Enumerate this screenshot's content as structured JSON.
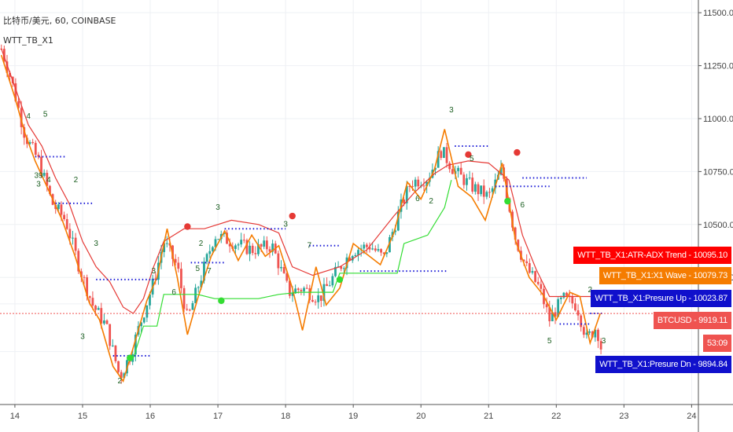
{
  "header": {
    "symbol_line": "比特币/美元, 60, COINBASE",
    "indicator_name": "WTT_TB_X1"
  },
  "chart_data": {
    "type": "candlestick",
    "ylim": [
      9650,
      11560
    ],
    "y_ticks": [
      {
        "value": 11500,
        "label": "11500.00"
      },
      {
        "value": 11250,
        "label": "11250.00"
      },
      {
        "value": 11000,
        "label": "11000.00"
      },
      {
        "value": 10750,
        "label": "10750.00"
      },
      {
        "value": 10500,
        "label": "10500.00"
      },
      {
        "value": 10250,
        "label": "10250.00"
      }
    ],
    "xlim": [
      13.78,
      24.1
    ],
    "x_ticks": [
      {
        "value": 14,
        "label": "14"
      },
      {
        "value": 15,
        "label": "15"
      },
      {
        "value": 16,
        "label": "16"
      },
      {
        "value": 17,
        "label": "17"
      },
      {
        "value": 18,
        "label": "18"
      },
      {
        "value": 19,
        "label": "19"
      },
      {
        "value": 20,
        "label": "20"
      },
      {
        "value": 21,
        "label": "21"
      },
      {
        "value": 22,
        "label": "22"
      },
      {
        "value": 23,
        "label": "23"
      },
      {
        "value": 24,
        "label": "24"
      }
    ],
    "price_path": [
      [
        13.78,
        11350
      ],
      [
        13.95,
        11180
      ],
      [
        14.15,
        10920
      ],
      [
        14.35,
        10800
      ],
      [
        14.55,
        10600
      ],
      [
        14.75,
        10520
      ],
      [
        14.95,
        10300
      ],
      [
        15.15,
        10120
      ],
      [
        15.35,
        10020
      ],
      [
        15.55,
        9780
      ],
      [
        15.7,
        9880
      ],
      [
        15.9,
        10080
      ],
      [
        16.05,
        10230
      ],
      [
        16.2,
        10420
      ],
      [
        16.4,
        10300
      ],
      [
        16.55,
        10050
      ],
      [
        16.75,
        10250
      ],
      [
        16.95,
        10450
      ],
      [
        17.2,
        10420
      ],
      [
        17.5,
        10380
      ],
      [
        17.8,
        10400
      ],
      [
        18.05,
        10180
      ],
      [
        18.25,
        10200
      ],
      [
        18.5,
        10150
      ],
      [
        18.8,
        10300
      ],
      [
        19.0,
        10380
      ],
      [
        19.25,
        10400
      ],
      [
        19.45,
        10340
      ],
      [
        19.7,
        10580
      ],
      [
        19.85,
        10700
      ],
      [
        20.1,
        10720
      ],
      [
        20.3,
        10850
      ],
      [
        20.5,
        10750
      ],
      [
        20.75,
        10680
      ],
      [
        21.0,
        10630
      ],
      [
        21.2,
        10760
      ],
      [
        21.4,
        10430
      ],
      [
        21.55,
        10300
      ],
      [
        21.75,
        10200
      ],
      [
        21.9,
        10050
      ],
      [
        22.1,
        10150
      ],
      [
        22.3,
        10120
      ],
      [
        22.45,
        9960
      ],
      [
        22.6,
        10020
      ],
      [
        22.65,
        9920
      ]
    ],
    "series": [
      {
        "name": "WTT_TB_X1:ATR-ADX Trend",
        "color": "#e53935",
        "points": [
          [
            13.8,
            11330
          ],
          [
            14.0,
            11150
          ],
          [
            14.2,
            10970
          ],
          [
            14.4,
            10870
          ],
          [
            14.6,
            10720
          ],
          [
            14.8,
            10600
          ],
          [
            15.0,
            10420
          ],
          [
            15.2,
            10300
          ],
          [
            15.4,
            10230
          ],
          [
            15.6,
            10110
          ],
          [
            15.75,
            10080
          ],
          [
            15.9,
            10150
          ],
          [
            16.05,
            10300
          ],
          [
            16.2,
            10420
          ],
          [
            16.5,
            10480
          ],
          [
            16.8,
            10480
          ],
          [
            17.2,
            10520
          ],
          [
            17.6,
            10500
          ],
          [
            17.9,
            10460
          ],
          [
            18.1,
            10300
          ],
          [
            18.4,
            10260
          ],
          [
            18.8,
            10300
          ],
          [
            19.2,
            10380
          ],
          [
            19.6,
            10540
          ],
          [
            19.9,
            10650
          ],
          [
            20.2,
            10740
          ],
          [
            20.4,
            10780
          ],
          [
            20.7,
            10800
          ],
          [
            21.0,
            10790
          ],
          [
            21.3,
            10710
          ],
          [
            21.5,
            10450
          ],
          [
            21.7,
            10290
          ],
          [
            21.9,
            10160
          ],
          [
            22.2,
            10160
          ],
          [
            22.5,
            10160
          ],
          [
            22.7,
            10150
          ]
        ]
      },
      {
        "name": "WTT_TB_X1:X1 Wave",
        "color": "#f57c00",
        "points": [
          [
            13.8,
            11300
          ],
          [
            14.0,
            11100
          ],
          [
            14.15,
            10930
          ],
          [
            14.3,
            10800
          ],
          [
            14.5,
            10660
          ],
          [
            14.7,
            10520
          ],
          [
            14.9,
            10340
          ],
          [
            15.1,
            10130
          ],
          [
            15.25,
            10050
          ],
          [
            15.45,
            9830
          ],
          [
            15.6,
            9760
          ],
          [
            15.75,
            9920
          ],
          [
            15.95,
            10140
          ],
          [
            16.1,
            10250
          ],
          [
            16.25,
            10480
          ],
          [
            16.4,
            10250
          ],
          [
            16.55,
            9980
          ],
          [
            16.7,
            10150
          ],
          [
            16.9,
            10350
          ],
          [
            17.1,
            10470
          ],
          [
            17.3,
            10330
          ],
          [
            17.5,
            10450
          ],
          [
            17.7,
            10350
          ],
          [
            17.9,
            10400
          ],
          [
            18.1,
            10200
          ],
          [
            18.25,
            10000
          ],
          [
            18.45,
            10300
          ],
          [
            18.6,
            10120
          ],
          [
            18.8,
            10200
          ],
          [
            19.0,
            10410
          ],
          [
            19.2,
            10360
          ],
          [
            19.4,
            10310
          ],
          [
            19.6,
            10460
          ],
          [
            19.8,
            10700
          ],
          [
            20.0,
            10620
          ],
          [
            20.2,
            10760
          ],
          [
            20.35,
            10950
          ],
          [
            20.55,
            10680
          ],
          [
            20.75,
            10630
          ],
          [
            20.95,
            10520
          ],
          [
            21.2,
            10790
          ],
          [
            21.4,
            10420
          ],
          [
            21.6,
            10250
          ],
          [
            21.8,
            10170
          ],
          [
            22.0,
            10050
          ],
          [
            22.2,
            10180
          ],
          [
            22.35,
            10160
          ],
          [
            22.5,
            9940
          ],
          [
            22.65,
            10080
          ]
        ]
      },
      {
        "name": "WTT_TB_X1:Presure Up",
        "color": "#1a1ad6",
        "segments": [
          [
            [
              14.3,
              10820
            ],
            [
              14.75,
              10820
            ]
          ],
          [
            [
              14.6,
              10600
            ],
            [
              15.15,
              10600
            ]
          ],
          [
            [
              15.2,
              10240
            ],
            [
              16.1,
              10240
            ]
          ],
          [
            [
              15.45,
              9880
            ],
            [
              16.0,
              9880
            ]
          ],
          [
            [
              16.6,
              10320
            ],
            [
              17.1,
              10320
            ]
          ],
          [
            [
              17.1,
              10480
            ],
            [
              18.0,
              10480
            ]
          ],
          [
            [
              18.35,
              10400
            ],
            [
              18.8,
              10400
            ]
          ],
          [
            [
              19.1,
              10280
            ],
            [
              20.4,
              10280
            ]
          ],
          [
            [
              20.5,
              10870
            ],
            [
              21.0,
              10870
            ]
          ],
          [
            [
              21.1,
              10680
            ],
            [
              21.9,
              10680
            ]
          ],
          [
            [
              21.5,
              10720
            ],
            [
              22.45,
              10720
            ]
          ],
          [
            [
              22.05,
              10030
            ],
            [
              22.5,
              10030
            ]
          ],
          [
            [
              22.5,
              10080
            ],
            [
              22.7,
              10080
            ]
          ]
        ]
      },
      {
        "name": "Support Line",
        "color": "#33dd33",
        "points": [
          [
            15.75,
            9870
          ],
          [
            15.9,
            10020
          ],
          [
            16.1,
            10020
          ],
          [
            16.2,
            10170
          ],
          [
            16.7,
            10170
          ],
          [
            16.95,
            10150
          ],
          [
            17.6,
            10150
          ],
          [
            17.9,
            10170
          ],
          [
            18.2,
            10180
          ],
          [
            18.7,
            10180
          ],
          [
            18.8,
            10270
          ],
          [
            19.65,
            10270
          ],
          [
            19.75,
            10410
          ],
          [
            20.1,
            10450
          ],
          [
            20.35,
            10580
          ],
          [
            20.45,
            10710
          ]
        ]
      }
    ],
    "markers": [
      {
        "x": 16.55,
        "y": 10490,
        "color": "#e53935",
        "label": ""
      },
      {
        "x": 18.1,
        "y": 10540,
        "color": "#e53935",
        "label": ""
      },
      {
        "x": 20.7,
        "y": 10830,
        "color": "#e53935",
        "label": ""
      },
      {
        "x": 21.42,
        "y": 10840,
        "color": "#e53935",
        "label": ""
      },
      {
        "x": 15.7,
        "y": 9870,
        "color": "#33dd33",
        "label": ""
      },
      {
        "x": 17.05,
        "y": 10140,
        "color": "#33dd33",
        "label": ""
      },
      {
        "x": 18.8,
        "y": 10240,
        "color": "#33dd33",
        "label": ""
      },
      {
        "x": 21.28,
        "y": 10610,
        "color": "#33dd33",
        "label": ""
      }
    ],
    "wave_labels": [
      {
        "x": 14.2,
        "y": 11000,
        "text": "4"
      },
      {
        "x": 14.45,
        "y": 11010,
        "text": "5"
      },
      {
        "x": 14.35,
        "y": 10680,
        "text": "3"
      },
      {
        "x": 14.5,
        "y": 10700,
        "text": "4"
      },
      {
        "x": 14.9,
        "y": 10700,
        "text": "2"
      },
      {
        "x": 15.2,
        "y": 10400,
        "text": "3"
      },
      {
        "x": 15.0,
        "y": 9960,
        "text": "3"
      },
      {
        "x": 15.55,
        "y": 9750,
        "text": "2"
      },
      {
        "x": 16.05,
        "y": 10270,
        "text": "3"
      },
      {
        "x": 16.35,
        "y": 10170,
        "text": "6"
      },
      {
        "x": 16.75,
        "y": 10400,
        "text": "2"
      },
      {
        "x": 16.7,
        "y": 10280,
        "text": "5"
      },
      {
        "x": 16.87,
        "y": 10270,
        "text": "7"
      },
      {
        "x": 17.0,
        "y": 10570,
        "text": "3"
      },
      {
        "x": 18.0,
        "y": 10490,
        "text": "3"
      },
      {
        "x": 18.35,
        "y": 10390,
        "text": "7"
      },
      {
        "x": 20.45,
        "y": 11030,
        "text": "3"
      },
      {
        "x": 20.15,
        "y": 10600,
        "text": "2"
      },
      {
        "x": 20.75,
        "y": 10800,
        "text": "5"
      },
      {
        "x": 21.5,
        "y": 10580,
        "text": "6"
      },
      {
        "x": 22.5,
        "y": 10180,
        "text": "2"
      },
      {
        "x": 21.9,
        "y": 9940,
        "text": "5"
      },
      {
        "x": 22.7,
        "y": 9940,
        "text": "3"
      },
      {
        "x": 14.35,
        "y": 10720,
        "text": "39"
      },
      {
        "x": 19.95,
        "y": 10610,
        "text": "6"
      }
    ],
    "current_price_line": 10079.73
  },
  "price_tags": [
    {
      "label": "WTT_TB_X1:ATR-ADX Trend - 10095.10",
      "value": 10095.1,
      "bg": "#ff0000",
      "fg": "#ffffff"
    },
    {
      "label": "WTT_TB_X1:X1 Wave - 10079.73",
      "value": 10079.73,
      "bg": "#f57c00",
      "fg": "#ffffff"
    },
    {
      "label": "WTT_TB_X1:Presure Up - 10023.87",
      "value": 10023.87,
      "bg": "#1010cc",
      "fg": "#ffffff"
    },
    {
      "label": "BTCUSD - 9919.11",
      "value": 9919.11,
      "bg": "#ef5350",
      "fg": "#ffffff"
    },
    {
      "label": "53:09",
      "value": 9890,
      "bg": "#ef5350",
      "fg": "#ffffff"
    },
    {
      "label": "WTT_TB_X1:Presure Dn - 9894.84",
      "value": 9894.84,
      "bg": "#1010cc",
      "fg": "#ffffff"
    }
  ],
  "colors": {
    "up": "#26a69a",
    "down": "#ef5350",
    "grid": "#eef0f4",
    "axis_text": "#444444",
    "current_line": "#ef5350"
  }
}
